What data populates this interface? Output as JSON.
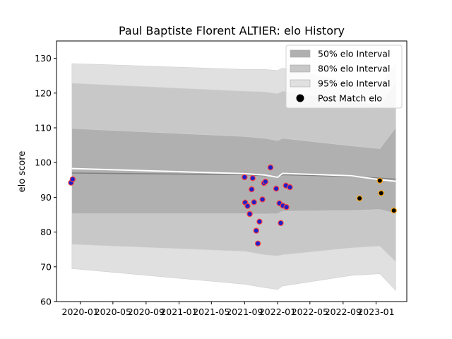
{
  "chart_data": {
    "type": "area",
    "title": "Paul Baptiste Florent ALTIER: elo History",
    "xlabel": "",
    "ylabel": "elo score",
    "ylim": [
      60,
      135
    ],
    "xlim": [
      "2019-10-05",
      "2023-04-25"
    ],
    "yticks": [
      60,
      70,
      80,
      90,
      100,
      110,
      120,
      130
    ],
    "xticks": [
      "2020-01",
      "2020-05",
      "2020-09",
      "2021-01",
      "2021-05",
      "2021-09",
      "2022-01",
      "2022-05",
      "2022-09",
      "2023-01"
    ],
    "legend_position": "top-right",
    "grid": false,
    "legend": [
      {
        "label": "50% elo Interval",
        "color": "#b0b0b0",
        "kind": "band"
      },
      {
        "label": "80% elo Interval",
        "color": "#c8c8c8",
        "kind": "band"
      },
      {
        "label": "95% elo Interval",
        "color": "#e0e0e0",
        "kind": "band"
      },
      {
        "label": "Post Match elo",
        "color": "#000000",
        "kind": "marker"
      }
    ],
    "bands": {
      "x": [
        "2019-12-01",
        "2021-09-01",
        "2021-11-15",
        "2022-01-01",
        "2022-01-20",
        "2022-10-01",
        "2023-01-15",
        "2023-03-15"
      ],
      "p95_upper": [
        128.5,
        126.8,
        126.8,
        126.5,
        127.2,
        123,
        122,
        128.5
      ],
      "p95_lower": [
        69.5,
        65,
        64,
        63.5,
        64.5,
        67.5,
        68,
        63.2
      ],
      "p80_upper": [
        122.8,
        120.5,
        120.3,
        119.8,
        120.5,
        117.5,
        116.5,
        122.8
      ],
      "p80_lower": [
        76.5,
        74.5,
        73.5,
        73.2,
        73.5,
        75.5,
        76,
        71.5
      ],
      "p50_upper": [
        109.8,
        107.5,
        107,
        106.3,
        107,
        104.8,
        104,
        110
      ],
      "p50_lower": [
        85.3,
        85.3,
        85.2,
        85.3,
        86,
        86.2,
        86.5,
        85.3
      ],
      "center": [
        97,
        96.5,
        96.2,
        96,
        96.5,
        96,
        95.5,
        95.2
      ],
      "mean": [
        98.3,
        96.8,
        96.4,
        95.8,
        96.9,
        96.2,
        95.1,
        94.6
      ]
    },
    "series": [
      {
        "values": [
          {
            "x": "2019-11-28",
            "y": 94.2
          },
          {
            "x": "2019-12-04",
            "y": 95.2
          },
          {
            "x": "2021-09-01",
            "y": 95.8
          },
          {
            "x": "2021-09-03",
            "y": 88.5
          },
          {
            "x": "2021-09-12",
            "y": 87.5
          },
          {
            "x": "2021-09-20",
            "y": 85.2
          },
          {
            "x": "2021-09-27",
            "y": 92.3
          },
          {
            "x": "2021-10-01",
            "y": 95.5
          },
          {
            "x": "2021-10-06",
            "y": 88.6
          },
          {
            "x": "2021-10-14",
            "y": 80.4
          },
          {
            "x": "2021-10-20",
            "y": 76.7
          },
          {
            "x": "2021-10-26",
            "y": 83.0
          },
          {
            "x": "2021-11-06",
            "y": 89.4
          },
          {
            "x": "2021-11-12",
            "y": 94.1
          },
          {
            "x": "2021-11-17",
            "y": 94.5
          },
          {
            "x": "2021-12-06",
            "y": 98.6
          },
          {
            "x": "2021-12-27",
            "y": 92.5
          },
          {
            "x": "2022-01-08",
            "y": 88.3
          },
          {
            "x": "2022-01-13",
            "y": 82.6
          },
          {
            "x": "2022-01-21",
            "y": 87.6
          },
          {
            "x": "2022-02-01",
            "y": 93.4
          },
          {
            "x": "2022-02-03",
            "y": 87.2
          },
          {
            "x": "2022-02-16",
            "y": 92.9
          }
        ],
        "fill": "#1f1fc8",
        "edge": "#ff4040"
      },
      {
        "values": [
          {
            "x": "2022-11-01",
            "y": 89.7
          },
          {
            "x": "2023-01-15",
            "y": 94.8
          },
          {
            "x": "2023-01-20",
            "y": 91.2
          },
          {
            "x": "2023-03-08",
            "y": 86.2
          }
        ],
        "fill": "#000000",
        "edge": "#ffa500"
      }
    ]
  }
}
